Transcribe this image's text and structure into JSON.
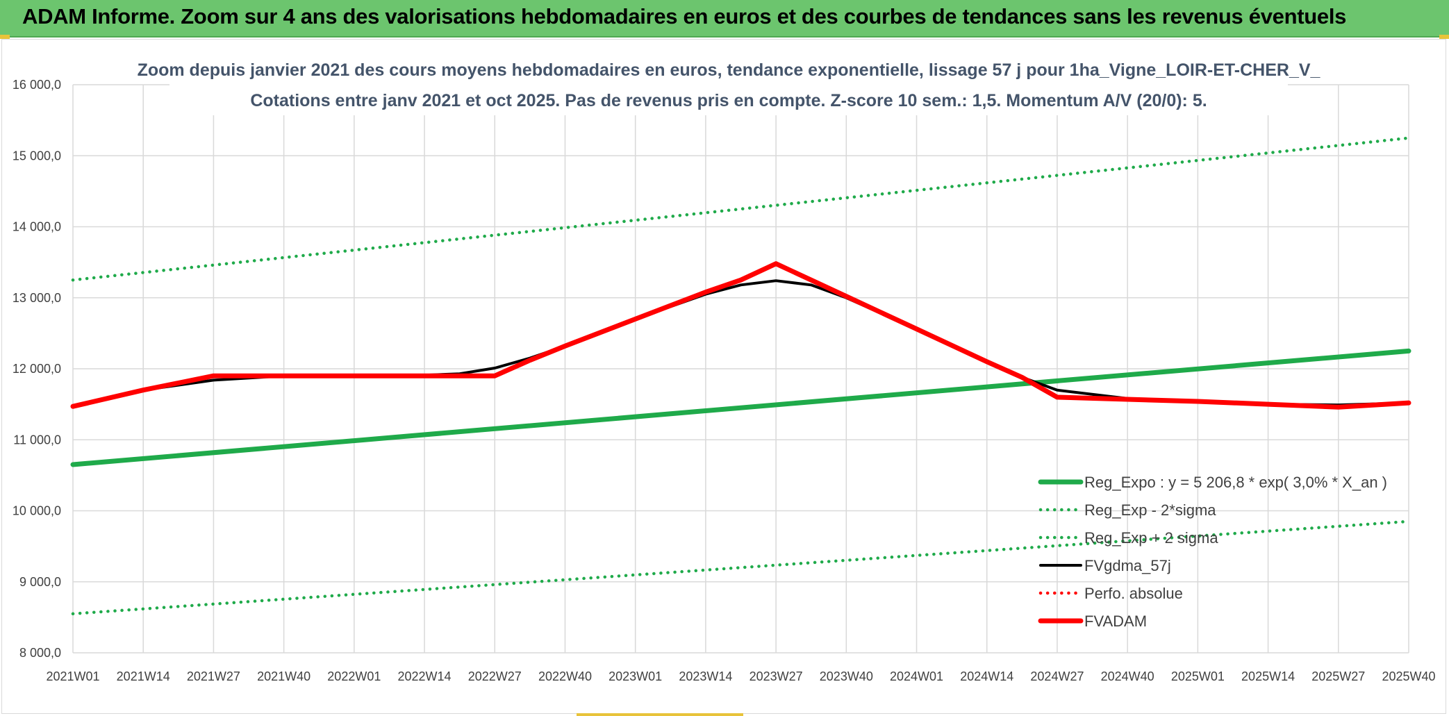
{
  "header": {
    "title": "ADAM Informe. Zoom sur 4 ans des valorisations hebdomadaires en euros et des courbes de tendances sans les revenus éventuels"
  },
  "colors": {
    "header_bg": "#6cc56e",
    "trend_green": "#1faa4a",
    "band_green": "#1faa4a",
    "black_line": "#000000",
    "red_line": "#ff0000",
    "grid": "#d9d9d9",
    "title_text": "#44546a"
  },
  "chart_data": {
    "type": "line",
    "title_line1": "Zoom depuis janvier 2021 des cours moyens hebdomadaires en euros, tendance exponentielle, lissage 57 j pour 1ha_Vigne_LOIR-ET-CHER_V_",
    "title_line2": "Cotations entre janv 2021 et oct 2025. Pas de revenus pris en compte. Z-score 10 sem.: 1,5. Momentum A/V (20/0): 5.",
    "xlabel": "",
    "ylabel": "",
    "ylim": [
      8000,
      16000
    ],
    "x_range": [
      0,
      19
    ],
    "yticks": [
      {
        "value": 8000,
        "label": "8 000,0"
      },
      {
        "value": 9000,
        "label": "9 000,0"
      },
      {
        "value": 10000,
        "label": "10 000,0"
      },
      {
        "value": 11000,
        "label": "11 000,0"
      },
      {
        "value": 12000,
        "label": "12 000,0"
      },
      {
        "value": 13000,
        "label": "13 000,0"
      },
      {
        "value": 14000,
        "label": "14 000,0"
      },
      {
        "value": 15000,
        "label": "15 000,0"
      },
      {
        "value": 16000,
        "label": "16 000,0"
      }
    ],
    "categories": [
      "2021W01",
      "2021W14",
      "2021W27",
      "2021W40",
      "2022W01",
      "2022W14",
      "2022W27",
      "2022W40",
      "2023W01",
      "2023W14",
      "2023W27",
      "2023W40",
      "2024W01",
      "2024W14",
      "2024W27",
      "2024W40",
      "2025W01",
      "2025W14",
      "2025W27",
      "2025W40"
    ],
    "grid": true,
    "legend_position": "bottom-right",
    "series": [
      {
        "name": "Reg_Expo : y = 5 206,8 * exp( 3,0% *  X_an )",
        "style": "solid-thick",
        "color": "#1faa4a",
        "x": [
          0,
          19
        ],
        "y": [
          10650,
          12250
        ]
      },
      {
        "name": "Reg_Exp - 2*sigma",
        "style": "dotted",
        "color": "#1faa4a",
        "x": [
          0,
          19
        ],
        "y": [
          8550,
          9850
        ]
      },
      {
        "name": "Reg_Exp + 2 sigma",
        "style": "dotted",
        "color": "#1faa4a",
        "x": [
          0,
          19
        ],
        "y": [
          13250,
          15250
        ]
      },
      {
        "name": "FVgdma_57j",
        "style": "solid",
        "color": "#000000",
        "x": [
          0,
          1,
          2,
          3,
          4,
          5,
          5.5,
          6,
          6.5,
          7,
          8,
          9,
          9.5,
          10,
          10.5,
          11,
          12,
          13,
          13.5,
          14,
          15,
          16,
          17,
          18,
          19
        ],
        "y": [
          11470,
          11700,
          11840,
          11900,
          11900,
          11910,
          11930,
          12010,
          12150,
          12320,
          12700,
          13050,
          13180,
          13240,
          13180,
          13000,
          12560,
          12100,
          11880,
          11700,
          11580,
          11530,
          11500,
          11490,
          11520
        ]
      },
      {
        "name": "Perfo. absolue",
        "style": "dotted",
        "color": "#ff0000",
        "x": [],
        "y": []
      },
      {
        "name": "FVADAM",
        "style": "solid-thick",
        "color": "#ff0000",
        "x": [
          0,
          1,
          2,
          3,
          4,
          5,
          5.5,
          6,
          6.5,
          7,
          8,
          9,
          9.5,
          10,
          10.5,
          11,
          12,
          13,
          13.5,
          14,
          15,
          16,
          17,
          18,
          19
        ],
        "y": [
          11470,
          11700,
          11900,
          11900,
          11900,
          11900,
          11900,
          11900,
          12120,
          12320,
          12700,
          13080,
          13250,
          13480,
          13250,
          13020,
          12560,
          12100,
          11880,
          11600,
          11570,
          11540,
          11500,
          11460,
          11520
        ]
      }
    ]
  }
}
